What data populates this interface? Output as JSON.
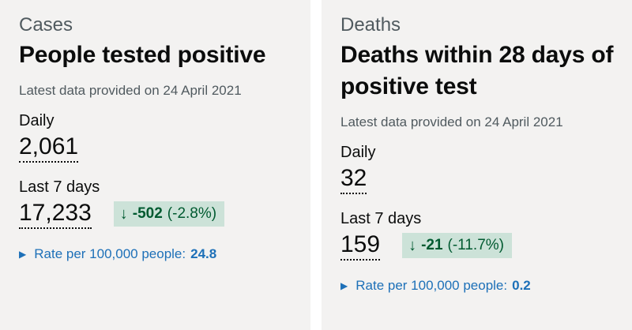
{
  "cases": {
    "caption": "Cases",
    "title": "People tested positive",
    "latest": "Latest data provided on 24 April 2021",
    "daily_label": "Daily",
    "daily_value": "2,061",
    "week_label": "Last 7 days",
    "week_value": "17,233",
    "change_icon": "arrow-down-icon",
    "change_arrow": "↓",
    "change_value": "-502",
    "change_percent": "(-2.8%)",
    "rate_label": "Rate per 100,000 people:",
    "rate_value": "24.8"
  },
  "deaths": {
    "caption": "Deaths",
    "title": "Deaths within 28 days of positive test",
    "latest": "Latest data provided on 24 April 2021",
    "daily_label": "Daily",
    "daily_value": "32",
    "week_label": "Last 7 days",
    "week_value": "159",
    "change_icon": "arrow-down-icon",
    "change_arrow": "↓",
    "change_value": "-21",
    "change_percent": "(-11.7%)",
    "rate_label": "Rate per 100,000 people:",
    "rate_value": "0.2"
  },
  "colors": {
    "card_bg": "#f3f2f1",
    "link": "#1d70b8",
    "positive_bg": "#cce2d8",
    "positive_text": "#005a30",
    "muted": "#505a5f"
  }
}
